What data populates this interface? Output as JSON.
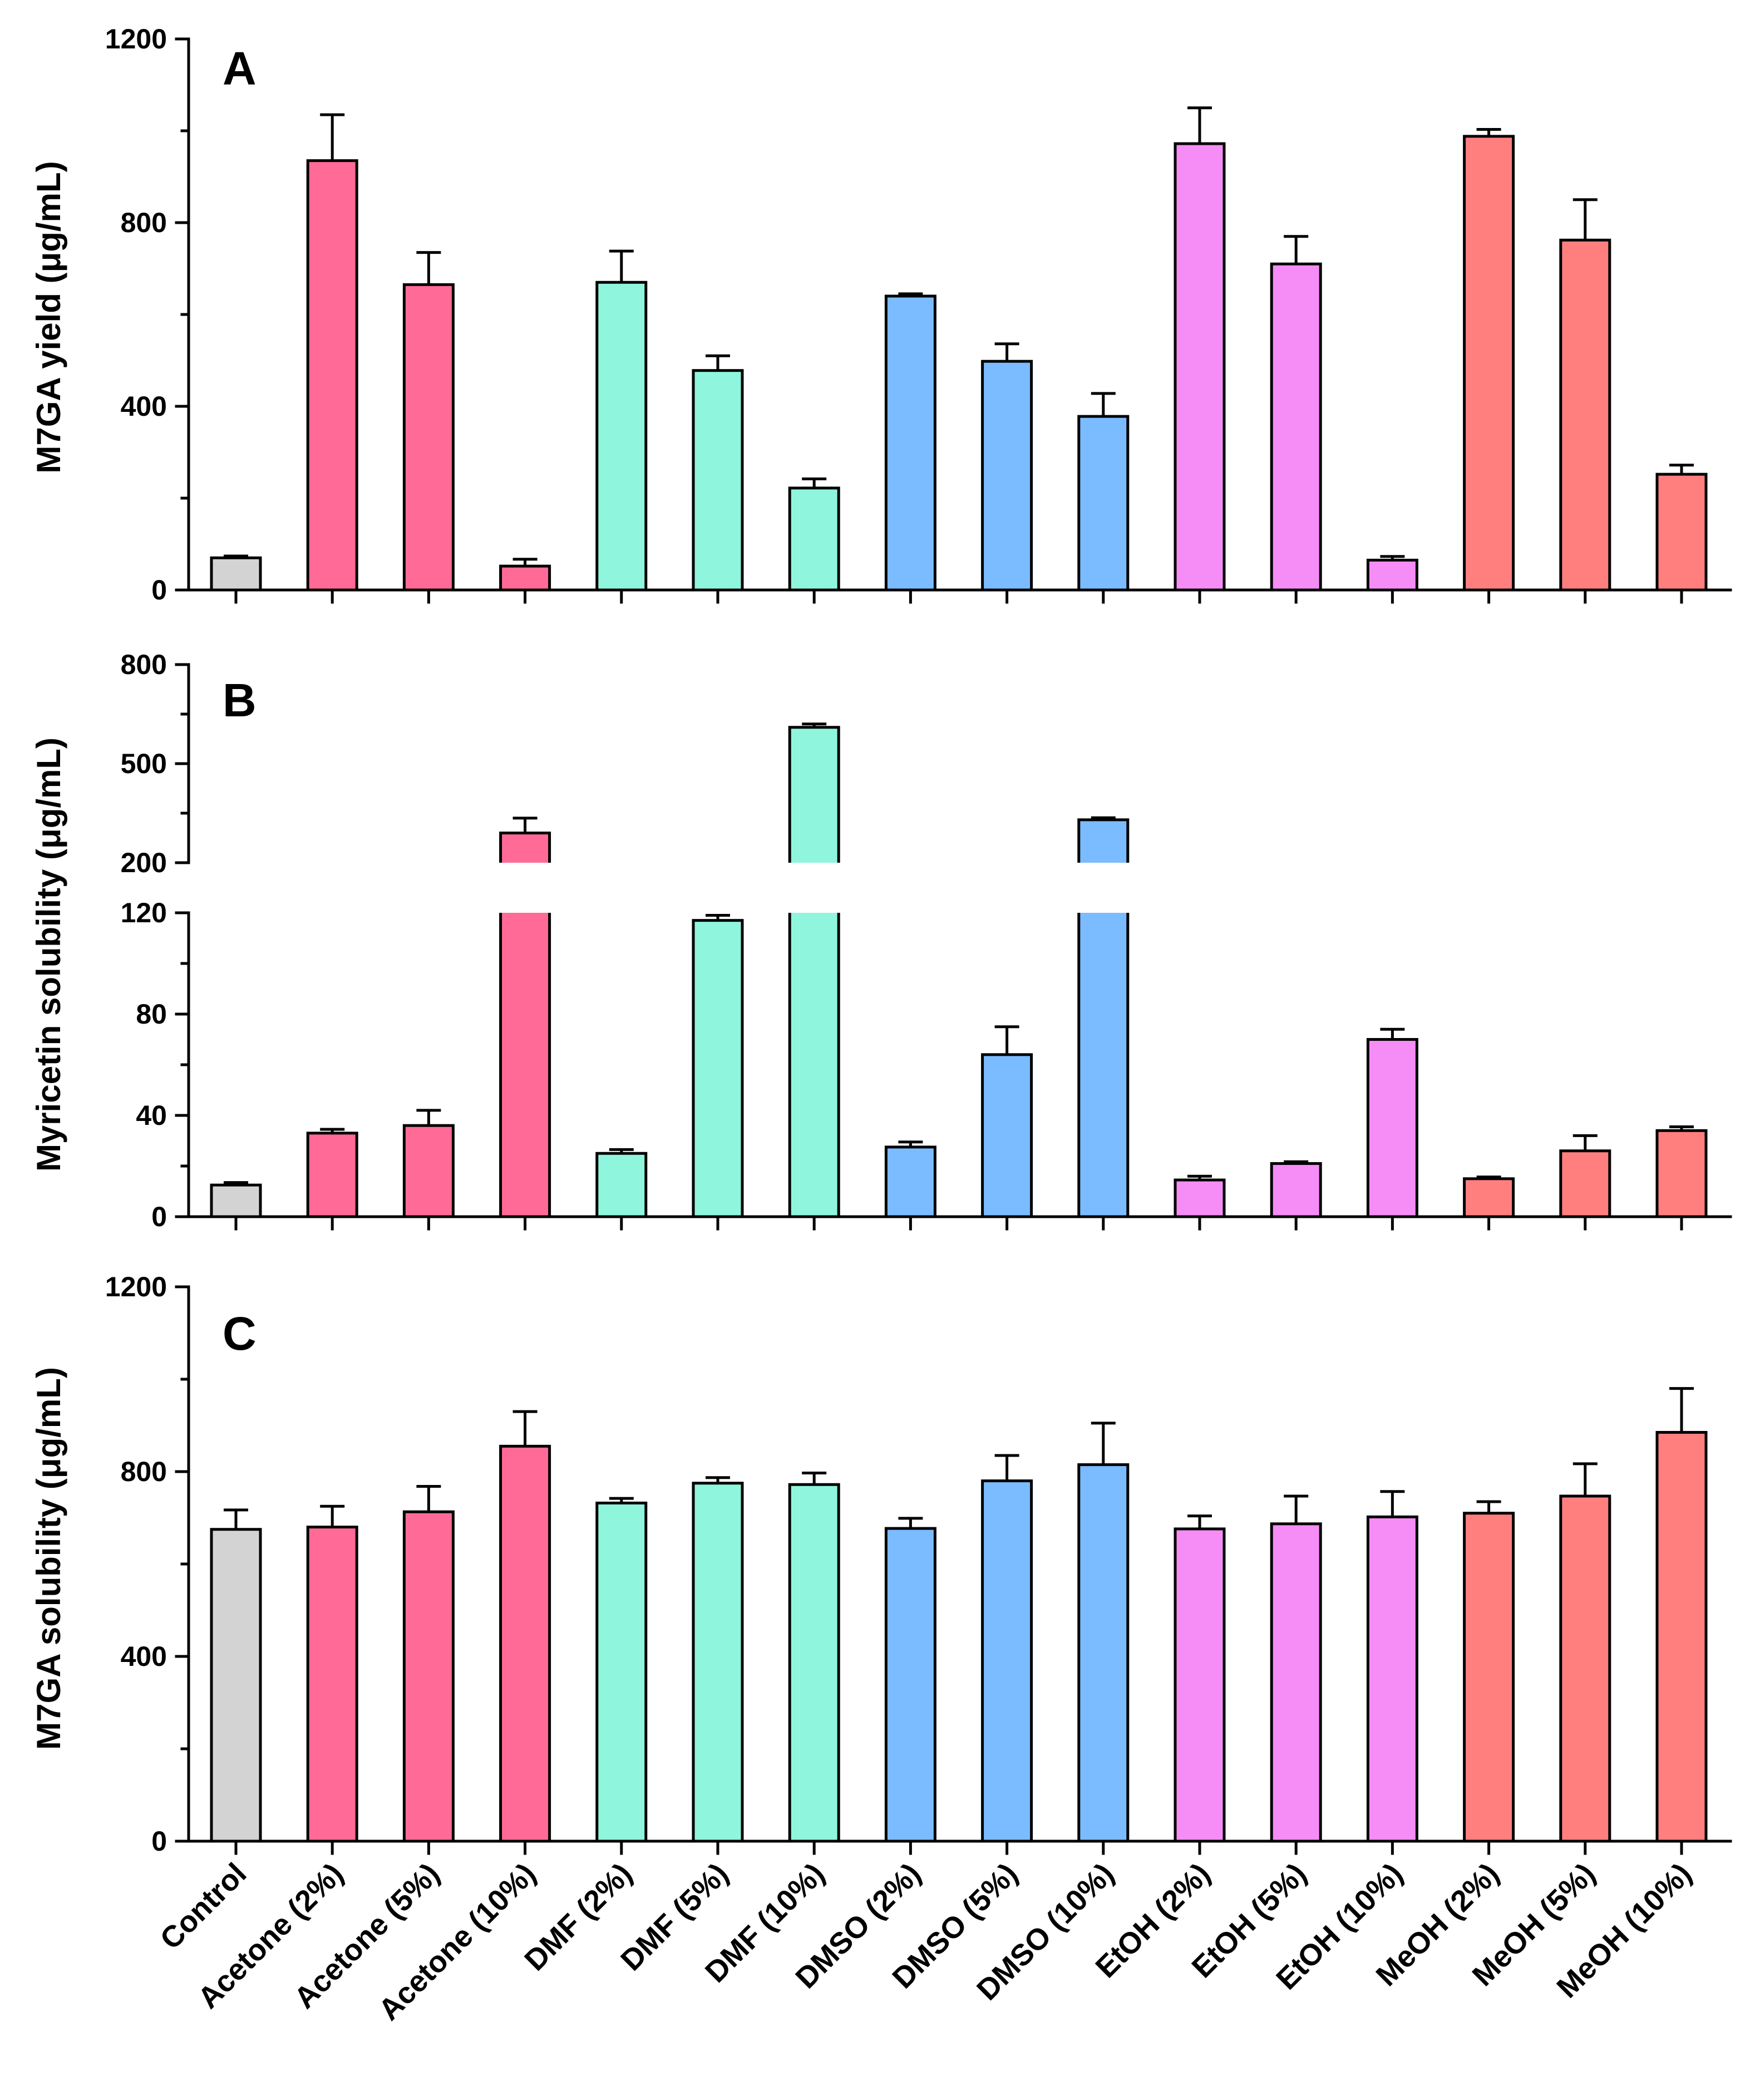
{
  "categories": [
    "Control",
    "Acetone (2%)",
    "Acetone (5%)",
    "Acetone (10%)",
    "DMF (2%)",
    "DMF (5%)",
    "DMF (10%)",
    "DMSO (2%)",
    "DMSO (5%)",
    "DMSO (10%)",
    "EtOH (2%)",
    "EtOH (5%)",
    "EtOH (10%)",
    "MeOH (2%)",
    "MeOH (5%)",
    "MeOH (10%)"
  ],
  "colors": [
    "#d3d3d3",
    "#ff6b96",
    "#ff6b96",
    "#ff6b96",
    "#8ff5dd",
    "#8ff5dd",
    "#8ff5dd",
    "#7abcff",
    "#7abcff",
    "#7abcff",
    "#f68cf5",
    "#f68cf5",
    "#f68cf5",
    "#ff7f7f",
    "#ff7f7f",
    "#ff7f7f"
  ],
  "chart_data": [
    {
      "type": "bar",
      "panel": "A",
      "ylabel": "M7GA yield (μg/mL)",
      "ylim": [
        0,
        1200
      ],
      "yticks": [
        "0",
        "400",
        "800",
        "1200"
      ],
      "values": [
        70,
        935,
        665,
        52,
        670,
        478,
        222,
        640,
        498,
        378,
        972,
        710,
        65,
        988,
        762,
        252
      ],
      "errors": [
        4,
        100,
        70,
        15,
        68,
        32,
        20,
        5,
        38,
        50,
        78,
        60,
        8,
        15,
        88,
        20
      ]
    },
    {
      "type": "bar",
      "panel": "B",
      "ylabel": "Myricetin solubility (μg/mL)",
      "axis_break": true,
      "lower_ylim": [
        0,
        120
      ],
      "upper_ylim": [
        200,
        800
      ],
      "yticks_lower": [
        "0",
        "40",
        "80",
        "120"
      ],
      "yticks_upper": [
        "200",
        "500",
        "800"
      ],
      "values": [
        12.5,
        33,
        36,
        290,
        25,
        117,
        610,
        27.5,
        64,
        330,
        14.5,
        21,
        70,
        15,
        26,
        34
      ],
      "errors": [
        1,
        1.5,
        6,
        45,
        1.5,
        2,
        10,
        2,
        11,
        6,
        1.5,
        0.7,
        4,
        0.7,
        6,
        1.5
      ]
    },
    {
      "type": "bar",
      "panel": "C",
      "ylabel": "M7GA solubility (μg/mL)",
      "ylim": [
        0,
        1200
      ],
      "yticks": [
        "0",
        "400",
        "800",
        "1200"
      ],
      "values": [
        675,
        680,
        713,
        855,
        732,
        775,
        772,
        677,
        780,
        815,
        676,
        687,
        702,
        710,
        747,
        885
      ],
      "errors": [
        42,
        45,
        55,
        75,
        10,
        12,
        25,
        22,
        55,
        90,
        28,
        60,
        55,
        25,
        70,
        95
      ]
    }
  ]
}
